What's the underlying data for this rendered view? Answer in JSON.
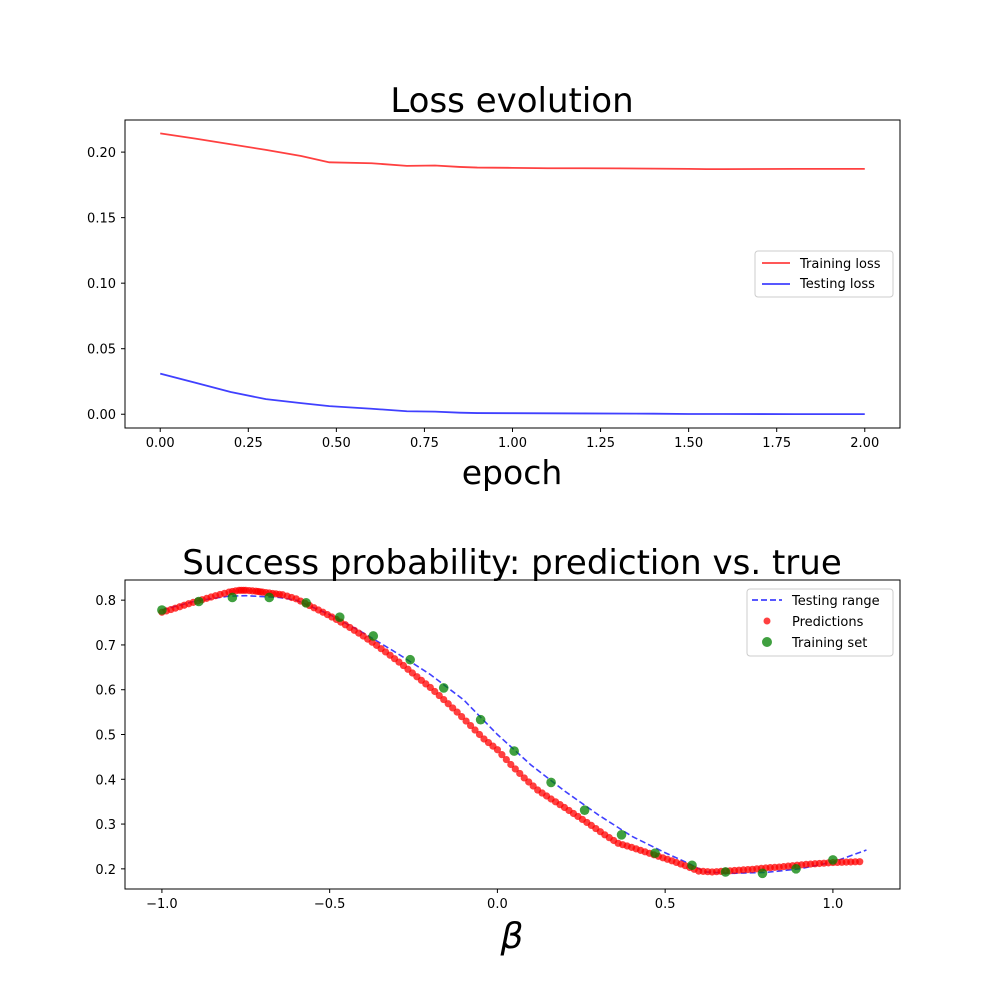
{
  "chart_data": [
    {
      "type": "line",
      "title": "Loss evolution",
      "xlabel": "epoch",
      "ylabel": "",
      "xlim": [
        -0.1,
        2.1
      ],
      "ylim": [
        -0.0105,
        0.2245
      ],
      "x_ticks": [
        0.0,
        0.25,
        0.5,
        0.75,
        1.0,
        1.25,
        1.5,
        1.75,
        2.0
      ],
      "x_tick_labels": [
        "0.00",
        "0.25",
        "0.50",
        "0.75",
        "1.00",
        "1.25",
        "1.50",
        "1.75",
        "2.00"
      ],
      "y_ticks": [
        0.0,
        0.05,
        0.1,
        0.15,
        0.2
      ],
      "y_tick_labels": [
        "0.00",
        "0.05",
        "0.10",
        "0.15",
        "0.20"
      ],
      "grid": false,
      "legend_position": "center-right",
      "series": [
        {
          "name": "Training loss",
          "color": "#ff0000",
          "x": [
            0.0,
            0.1,
            0.2,
            0.3,
            0.4,
            0.48,
            0.6,
            0.7,
            0.78,
            0.85,
            0.9,
            1.0,
            1.1,
            1.2,
            1.3,
            1.4,
            1.5,
            1.55,
            1.6,
            1.7,
            1.8,
            1.9,
            2.0
          ],
          "y": [
            0.2143,
            0.2103,
            0.206,
            0.2017,
            0.197,
            0.1922,
            0.1915,
            0.1895,
            0.1898,
            0.1887,
            0.1882,
            0.188,
            0.1877,
            0.1877,
            0.1876,
            0.1874,
            0.1872,
            0.187,
            0.187,
            0.1871,
            0.1872,
            0.1872,
            0.1872
          ]
        },
        {
          "name": "Testing loss",
          "color": "#0000ff",
          "x": [
            0.0,
            0.1,
            0.2,
            0.3,
            0.4,
            0.48,
            0.6,
            0.7,
            0.78,
            0.85,
            0.9,
            1.0,
            1.2,
            1.4,
            1.5,
            1.6,
            1.8,
            2.0
          ],
          "y": [
            0.031,
            0.024,
            0.017,
            0.0115,
            0.0085,
            0.0062,
            0.0042,
            0.0023,
            0.002,
            0.0012,
            0.0009,
            0.0008,
            0.0006,
            0.0004,
            0.0002,
            0.0002,
            0.0001,
            0.0001
          ]
        }
      ]
    },
    {
      "type": "scatter",
      "title": "Success probability: prediction vs. true",
      "xlabel": "β",
      "ylabel": "",
      "xlim": [
        -1.11,
        1.2
      ],
      "ylim": [
        0.155,
        0.845
      ],
      "x_ticks": [
        -1.0,
        -0.5,
        0.0,
        0.5,
        1.0
      ],
      "x_tick_labels": [
        "−1.0",
        "−0.5",
        "0.0",
        "0.5",
        "1.0"
      ],
      "y_ticks": [
        0.2,
        0.3,
        0.4,
        0.5,
        0.6,
        0.7,
        0.8
      ],
      "y_tick_labels": [
        "0.2",
        "0.3",
        "0.4",
        "0.5",
        "0.6",
        "0.7",
        "0.8"
      ],
      "grid": false,
      "legend_position": "top-right",
      "testing_range": {
        "name": "Testing range",
        "color": "#0000ff",
        "style": "dashed",
        "x": [
          -1.0,
          -0.9,
          -0.8,
          -0.75,
          -0.7,
          -0.65,
          -0.6,
          -0.5,
          -0.4,
          -0.3,
          -0.2,
          -0.1,
          0.0,
          0.1,
          0.2,
          0.3,
          0.4,
          0.5,
          0.57,
          0.62,
          0.7,
          0.8,
          0.9,
          1.0,
          1.1
        ],
        "y": [
          0.778,
          0.798,
          0.809,
          0.81,
          0.808,
          0.806,
          0.8,
          0.768,
          0.727,
          0.682,
          0.634,
          0.577,
          0.5,
          0.432,
          0.374,
          0.321,
          0.273,
          0.236,
          0.212,
          0.193,
          0.19,
          0.192,
          0.2,
          0.215,
          0.242
        ]
      },
      "predictions": {
        "name": "Predictions",
        "color": "#ff0000",
        "x": [
          -1.0,
          -0.96,
          -0.92,
          -0.88,
          -0.84,
          -0.8,
          -0.77,
          -0.75,
          -0.72,
          -0.7,
          -0.67,
          -0.64,
          -0.6,
          -0.56,
          -0.52,
          -0.48,
          -0.44,
          -0.4,
          -0.36,
          -0.32,
          -0.28,
          -0.24,
          -0.2,
          -0.16,
          -0.12,
          -0.08,
          -0.04,
          0.0,
          0.04,
          0.08,
          0.12,
          0.16,
          0.2,
          0.24,
          0.28,
          0.32,
          0.36,
          0.4,
          0.44,
          0.48,
          0.52,
          0.56,
          0.6,
          0.64,
          0.68,
          0.72,
          0.76,
          0.8,
          0.84,
          0.88,
          0.92,
          0.96,
          1.0,
          1.04,
          1.08
        ],
        "y": [
          0.773,
          0.782,
          0.792,
          0.801,
          0.81,
          0.818,
          0.822,
          0.822,
          0.82,
          0.818,
          0.815,
          0.812,
          0.803,
          0.788,
          0.773,
          0.757,
          0.739,
          0.72,
          0.699,
          0.677,
          0.654,
          0.629,
          0.605,
          0.578,
          0.55,
          0.52,
          0.49,
          0.466,
          0.433,
          0.403,
          0.376,
          0.356,
          0.337,
          0.317,
          0.297,
          0.276,
          0.257,
          0.248,
          0.238,
          0.228,
          0.218,
          0.207,
          0.195,
          0.193,
          0.195,
          0.197,
          0.199,
          0.202,
          0.204,
          0.207,
          0.21,
          0.212,
          0.214,
          0.215,
          0.216
        ]
      },
      "training_set": {
        "name": "Training set",
        "color": "#008000",
        "x": [
          -1.0,
          -0.89,
          -0.79,
          -0.68,
          -0.57,
          -0.47,
          -0.37,
          -0.26,
          -0.16,
          -0.05,
          0.05,
          0.16,
          0.26,
          0.37,
          0.47,
          0.58,
          0.68,
          0.79,
          0.89,
          1.0
        ],
        "y": [
          0.778,
          0.797,
          0.806,
          0.806,
          0.794,
          0.762,
          0.72,
          0.667,
          0.604,
          0.533,
          0.463,
          0.393,
          0.331,
          0.276,
          0.235,
          0.208,
          0.193,
          0.19,
          0.2,
          0.22
        ]
      }
    }
  ]
}
